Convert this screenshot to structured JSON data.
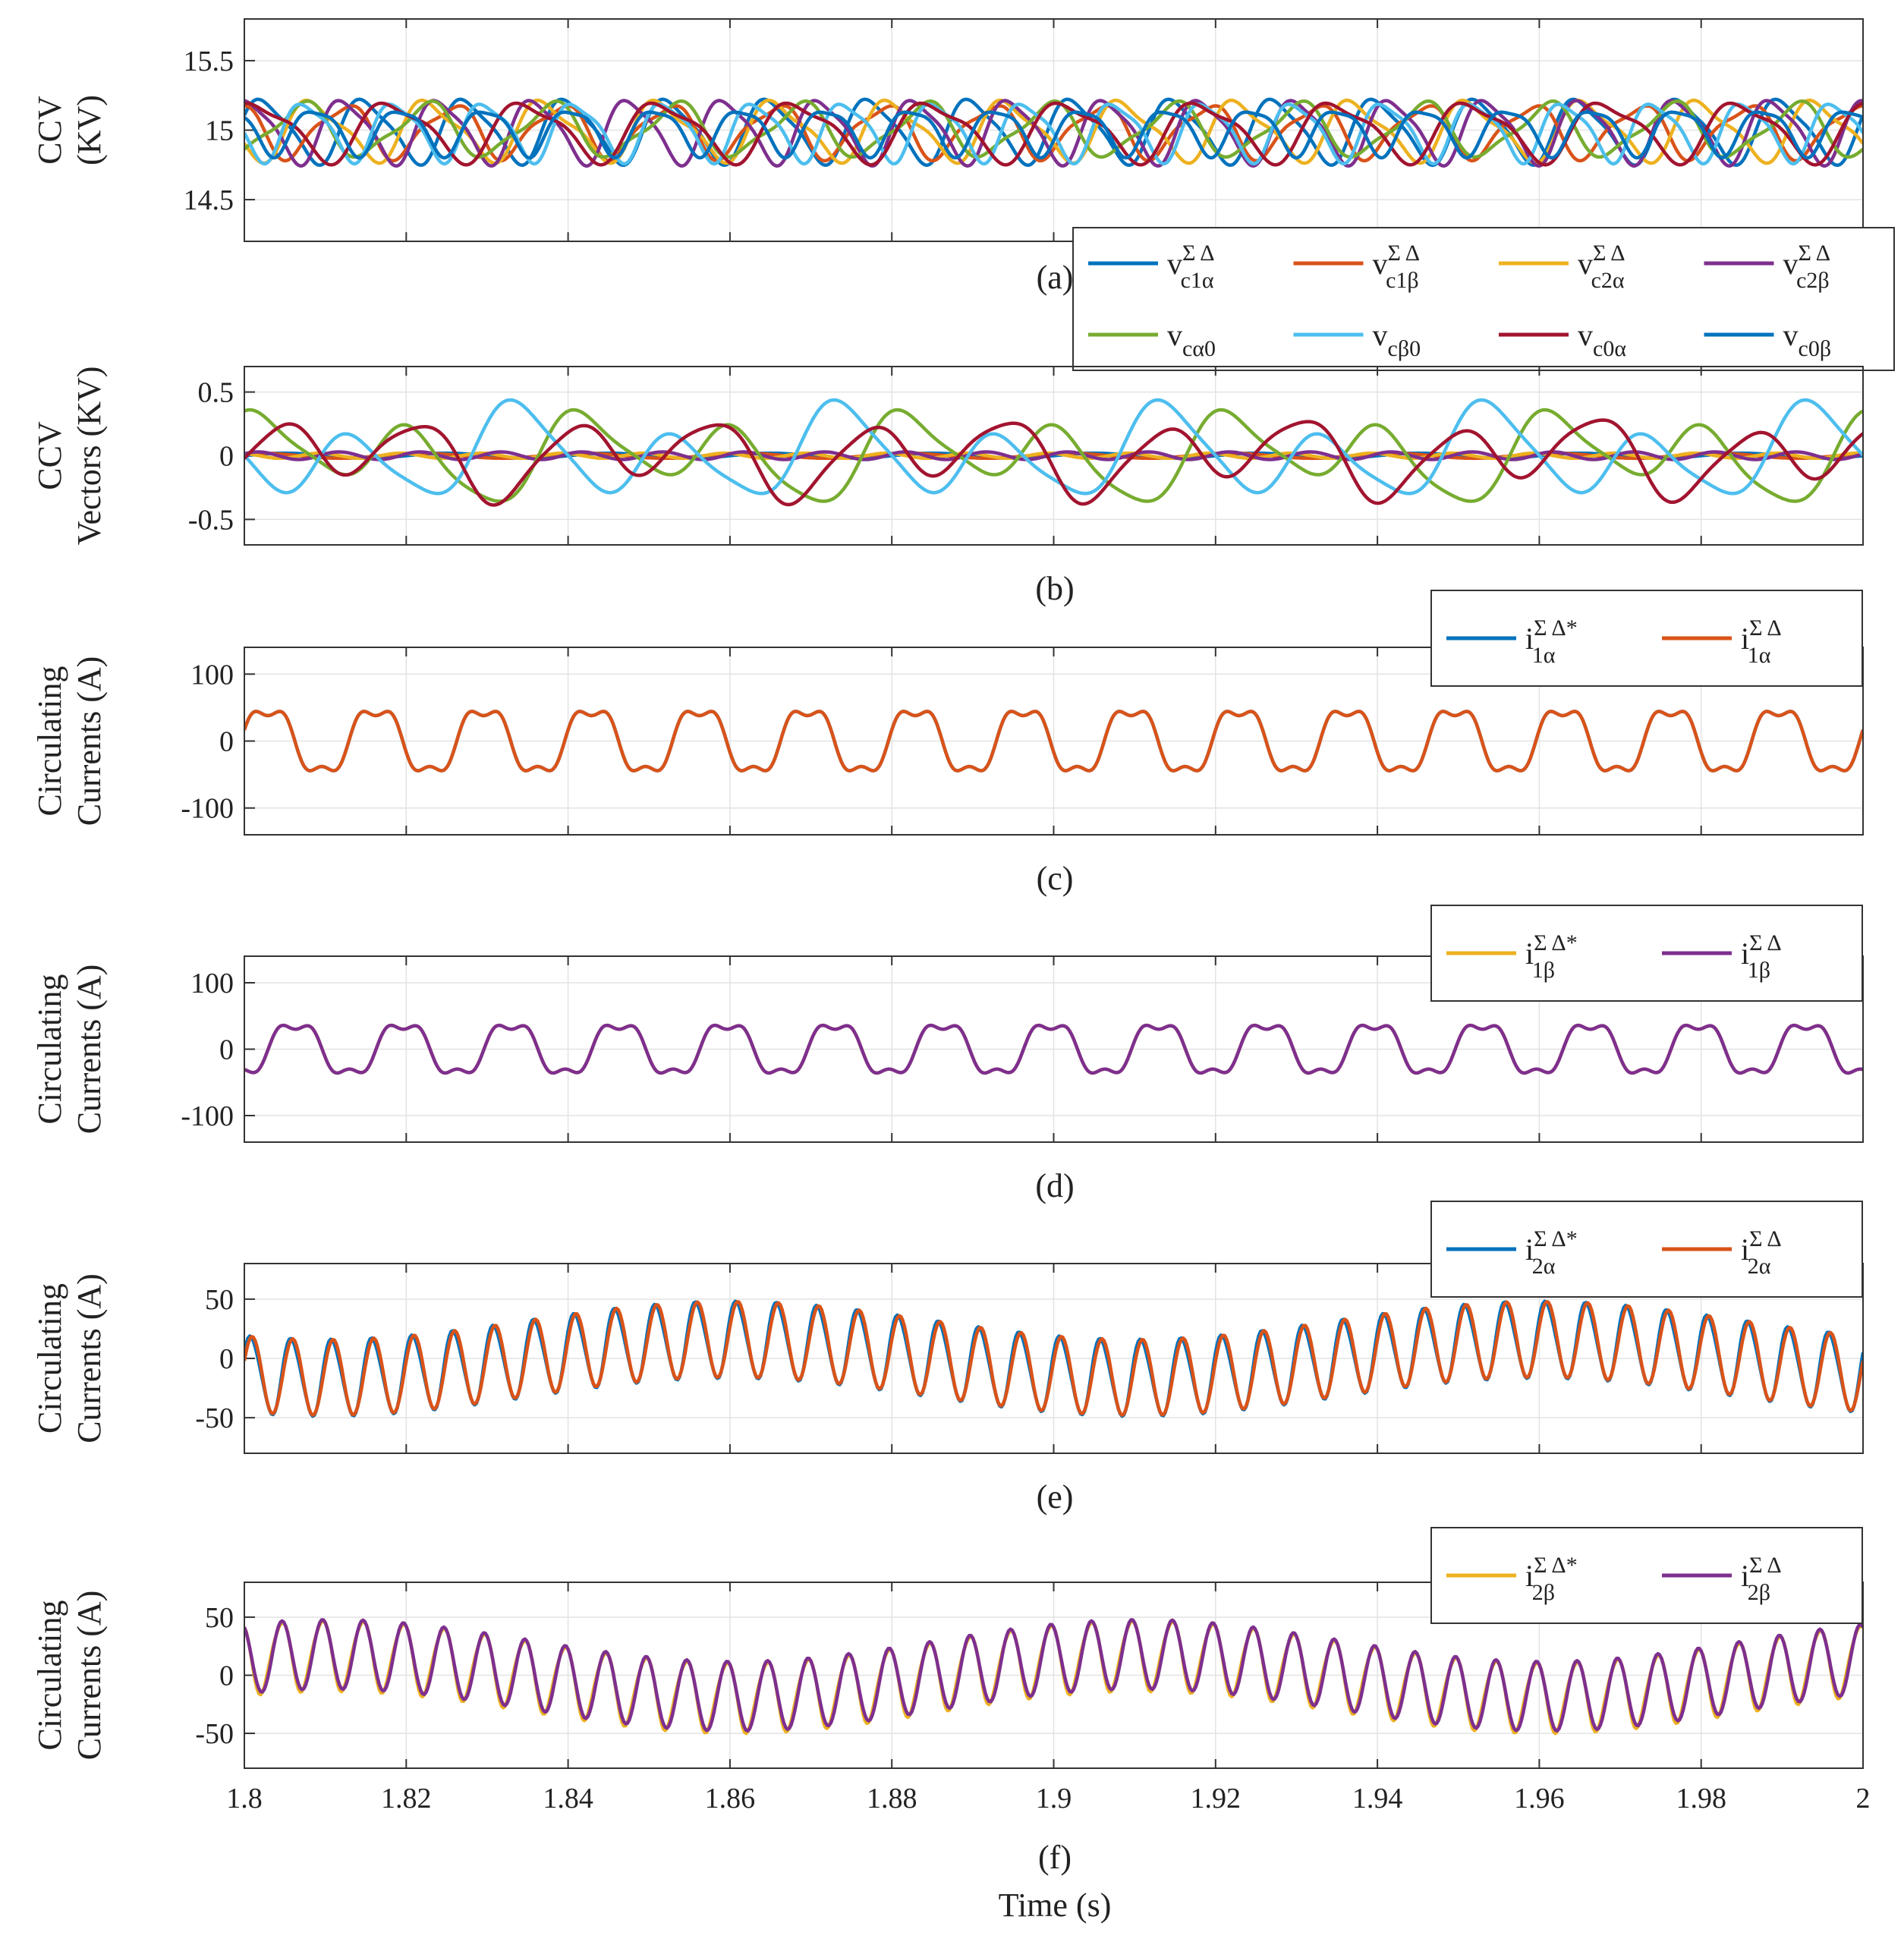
{
  "x_axis": {
    "label": "Time (s)",
    "range": [
      1.8,
      2.0
    ],
    "ticks": [
      1.8,
      1.82,
      1.84,
      1.86,
      1.88,
      1.9,
      1.92,
      1.94,
      1.96,
      1.98,
      2.0
    ],
    "tick_labels": [
      "1.8",
      "1.82",
      "1.84",
      "1.86",
      "1.88",
      "1.9",
      "1.92",
      "1.94",
      "1.96",
      "1.98",
      "2"
    ]
  },
  "colors": {
    "blue": "#0072BD",
    "orange": "#D95319",
    "yellow": "#EDB120",
    "purple": "#7E2F8E",
    "green": "#77AC30",
    "cyan": "#4DBEEE",
    "darkred": "#A2142F"
  },
  "chart_data": [
    {
      "id": "a",
      "type": "line",
      "caption": "(a)",
      "ylabel_lines": [
        "CCV",
        "(KV)"
      ],
      "ylim": [
        14.2,
        15.8
      ],
      "yticks": [
        14.5,
        15,
        15.5
      ],
      "ytick_labels": [
        "14.5",
        "15",
        "15.5"
      ],
      "legend": {
        "cols": 4,
        "entries": [
          {
            "base": "v",
            "sup": "Σ Δ",
            "sub": "c1α",
            "color": "#0072BD"
          },
          {
            "base": "v",
            "sup": "Σ Δ",
            "sub": "c1β",
            "color": "#D95319"
          },
          {
            "base": "v",
            "sup": "Σ Δ",
            "sub": "c2α",
            "color": "#EDB120"
          },
          {
            "base": "v",
            "sup": "Σ Δ",
            "sub": "c2β",
            "color": "#7E2F8E"
          },
          {
            "base": "v",
            "sup": "",
            "sub": "cα0",
            "color": "#77AC30"
          },
          {
            "base": "v",
            "sup": "",
            "sub": "cβ0",
            "color": "#4DBEEE"
          },
          {
            "base": "v",
            "sup": "",
            "sub": "c0α",
            "color": "#A2142F"
          },
          {
            "base": "v",
            "sup": "",
            "sub": "c0β",
            "color": "#0072BD"
          }
        ]
      },
      "series": [
        {
          "name": "vc1α ΣΔ",
          "color": "#0072BD",
          "offset": 15.0,
          "components": [
            {
              "amp": 0.22,
              "freq": 80,
              "phase": 0.3
            },
            {
              "amp": 0.05,
              "freq": 160,
              "phase": 1.0
            }
          ]
        },
        {
          "name": "vc1β ΣΔ",
          "color": "#D95319",
          "offset": 15.0,
          "components": [
            {
              "amp": 0.18,
              "freq": 75,
              "phase": 2.1
            },
            {
              "amp": 0.05,
              "freq": 150,
              "phase": 0.4
            }
          ]
        },
        {
          "name": "vc2α ΣΔ",
          "color": "#EDB120",
          "offset": 15.0,
          "components": [
            {
              "amp": 0.2,
              "freq": 70,
              "phase": 4.0
            },
            {
              "amp": 0.06,
              "freq": 140,
              "phase": 2.0
            }
          ]
        },
        {
          "name": "vc2β ΣΔ",
          "color": "#7E2F8E",
          "offset": 15.0,
          "components": [
            {
              "amp": 0.22,
              "freq": 85,
              "phase": 1.2
            },
            {
              "amp": 0.05,
              "freq": 170,
              "phase": 3.0
            }
          ]
        },
        {
          "name": "vcα0",
          "color": "#77AC30",
          "offset": 15.0,
          "components": [
            {
              "amp": 0.18,
              "freq": 65,
              "phase": 5.0
            },
            {
              "amp": 0.05,
              "freq": 130,
              "phase": 0.8
            }
          ]
        },
        {
          "name": "vcβ0",
          "color": "#4DBEEE",
          "offset": 15.0,
          "components": [
            {
              "amp": 0.2,
              "freq": 90,
              "phase": 3.5
            },
            {
              "amp": 0.05,
              "freq": 180,
              "phase": 1.5
            }
          ]
        },
        {
          "name": "vc0α",
          "color": "#A2142F",
          "offset": 15.0,
          "components": [
            {
              "amp": 0.2,
              "freq": 60,
              "phase": 0.9
            },
            {
              "amp": 0.06,
              "freq": 120,
              "phase": 2.5
            }
          ]
        },
        {
          "name": "vc0β",
          "color": "#0072BD",
          "offset": 15.0,
          "components": [
            {
              "amp": 0.16,
              "freq": 95,
              "phase": 2.6
            },
            {
              "amp": 0.04,
              "freq": 190,
              "phase": 0.2
            }
          ]
        }
      ]
    },
    {
      "id": "b",
      "type": "line",
      "caption": "(b)",
      "ylabel_lines": [
        "CCV",
        "Vectors (KV)"
      ],
      "ylim": [
        -0.7,
        0.7
      ],
      "yticks": [
        -0.5,
        0,
        0.5
      ],
      "ytick_labels": [
        "-0.5",
        "0",
        "0.5"
      ],
      "series": [
        {
          "name": "vc1α ΣΔ",
          "color": "#0072BD",
          "offset": 0,
          "components": [
            {
              "amp": 0.02,
              "freq": 50,
              "phase": 0.0
            }
          ]
        },
        {
          "name": "vc1β ΣΔ",
          "color": "#D95319",
          "offset": 0,
          "components": [
            {
              "amp": 0.02,
              "freq": 50,
              "phase": 1.0
            }
          ]
        },
        {
          "name": "vc2α ΣΔ",
          "color": "#EDB120",
          "offset": 0,
          "components": [
            {
              "amp": 0.02,
              "freq": 100,
              "phase": 2.0
            }
          ]
        },
        {
          "name": "vc2β ΣΔ",
          "color": "#7E2F8E",
          "offset": 0,
          "components": [
            {
              "amp": 0.03,
              "freq": 100,
              "phase": 0.5
            }
          ]
        },
        {
          "name": "vcα0",
          "color": "#77AC30",
          "offset": 0,
          "components": [
            {
              "amp": 0.26,
              "freq": 50,
              "phase": 1.3
            },
            {
              "amp": 0.14,
              "freq": 25,
              "phase": 0.4
            },
            {
              "amp": 0.05,
              "freq": 100,
              "phase": 2.0
            }
          ]
        },
        {
          "name": "vcβ0",
          "color": "#4DBEEE",
          "offset": 0,
          "components": [
            {
              "amp": 0.28,
              "freq": 50,
              "phase": 3.6
            },
            {
              "amp": 0.14,
              "freq": 25,
              "phase": 2.4
            },
            {
              "amp": 0.05,
              "freq": 100,
              "phase": 0.7
            }
          ]
        },
        {
          "name": "vc0α",
          "color": "#A2142F",
          "offset": 0,
          "components": [
            {
              "amp": 0.24,
              "freq": 55,
              "phase": 0.2
            },
            {
              "amp": 0.12,
              "freq": 27,
              "phase": 1.8
            },
            {
              "amp": 0.04,
              "freq": 110,
              "phase": 2.9
            }
          ]
        }
      ]
    },
    {
      "id": "c",
      "type": "line",
      "caption": "(c)",
      "ylabel_lines": [
        "Circulating",
        "Currents (A)"
      ],
      "ylim": [
        -140,
        140
      ],
      "yticks": [
        -100,
        0,
        100
      ],
      "ytick_labels": [
        "-100",
        "0",
        "100"
      ],
      "legend": {
        "cols": 2,
        "entries": [
          {
            "base": "i",
            "sup": "Σ Δ*",
            "sub": "1α",
            "color": "#0072BD"
          },
          {
            "base": "i",
            "sup": "Σ Δ",
            "sub": "1α",
            "color": "#D95319"
          }
        ]
      },
      "series": [
        {
          "name": "i1α ΣΔ*",
          "color": "#0072BD",
          "offset": 0,
          "components": [
            {
              "amp": 50,
              "freq": 75,
              "phase": 0.2
            },
            {
              "amp": 12,
              "freq": 225,
              "phase": 0.6
            }
          ]
        },
        {
          "name": "i1α ΣΔ",
          "color": "#D95319",
          "offset": 0,
          "components": [
            {
              "amp": 50,
              "freq": 75,
              "phase": 0.2
            },
            {
              "amp": 12,
              "freq": 225,
              "phase": 0.6
            }
          ]
        }
      ]
    },
    {
      "id": "d",
      "type": "line",
      "caption": "(d)",
      "ylabel_lines": [
        "Circulating",
        "Currents (A)"
      ],
      "ylim": [
        -140,
        140
      ],
      "yticks": [
        -100,
        0,
        100
      ],
      "ytick_labels": [
        "-100",
        "0",
        "100"
      ],
      "legend": {
        "cols": 2,
        "entries": [
          {
            "base": "i",
            "sup": "Σ Δ*",
            "sub": "1β",
            "color": "#EDB120"
          },
          {
            "base": "i",
            "sup": "Σ Δ",
            "sub": "1β",
            "color": "#7E2F8E"
          }
        ]
      },
      "series": [
        {
          "name": "i1β ΣΔ*",
          "color": "#EDB120",
          "offset": 0,
          "components": [
            {
              "amp": 40,
              "freq": 75,
              "phase": 4.9
            },
            {
              "amp": 10,
              "freq": 225,
              "phase": 2.1
            }
          ]
        },
        {
          "name": "i1β ΣΔ",
          "color": "#7E2F8E",
          "offset": 0,
          "components": [
            {
              "amp": 40,
              "freq": 75,
              "phase": 4.9
            },
            {
              "amp": 10,
              "freq": 225,
              "phase": 2.1
            }
          ]
        }
      ]
    },
    {
      "id": "e",
      "type": "line",
      "caption": "(e)",
      "ylabel_lines": [
        "Circulating",
        "Currents (A)"
      ],
      "ylim": [
        -80,
        80
      ],
      "yticks": [
        -50,
        0,
        50
      ],
      "ytick_labels": [
        "-50",
        "0",
        "50"
      ],
      "legend": {
        "cols": 2,
        "entries": [
          {
            "base": "i",
            "sup": "Σ Δ*",
            "sub": "2α",
            "color": "#0072BD"
          },
          {
            "base": "i",
            "sup": "Σ Δ",
            "sub": "2α",
            "color": "#D95319"
          }
        ]
      },
      "series": [
        {
          "name": "i2α ΣΔ*",
          "color": "#0072BD",
          "offset": 0,
          "components": [
            {
              "amp": 32,
              "freq": 200,
              "phase": 0.5
            },
            {
              "amp": 16,
              "freq": 10,
              "phase": -2.2
            },
            {
              "amp": 3,
              "freq": 400,
              "phase": 1.1
            }
          ]
        },
        {
          "name": "i2α ΣΔ",
          "color": "#D95319",
          "offset": 0,
          "components": [
            {
              "amp": 32,
              "freq": 200,
              "phase": 0.35
            },
            {
              "amp": 16,
              "freq": 10,
              "phase": -2.2
            }
          ]
        }
      ]
    },
    {
      "id": "f",
      "type": "line",
      "caption": "(f)",
      "ylabel_lines": [
        "Circulating",
        "Currents (A)"
      ],
      "ylim": [
        -80,
        80
      ],
      "yticks": [
        -50,
        0,
        50
      ],
      "ytick_labels": [
        "-50",
        "0",
        "50"
      ],
      "legend": {
        "cols": 2,
        "entries": [
          {
            "base": "i",
            "sup": "Σ Δ*",
            "sub": "2β",
            "color": "#EDB120"
          },
          {
            "base": "i",
            "sup": "Σ Δ",
            "sub": "2β",
            "color": "#7E2F8E"
          }
        ]
      },
      "series": [
        {
          "name": "i2β ΣΔ*",
          "color": "#EDB120",
          "offset": 0,
          "components": [
            {
              "amp": 30,
              "freq": 200,
              "phase": 2.1
            },
            {
              "amp": 18,
              "freq": 10,
              "phase": 0.9
            },
            {
              "amp": 3,
              "freq": 400,
              "phase": 0.4
            }
          ]
        },
        {
          "name": "i2β ΣΔ",
          "color": "#7E2F8E",
          "offset": 0,
          "components": [
            {
              "amp": 30,
              "freq": 200,
              "phase": 2.0
            },
            {
              "amp": 18,
              "freq": 10,
              "phase": 0.9
            }
          ]
        }
      ]
    }
  ]
}
